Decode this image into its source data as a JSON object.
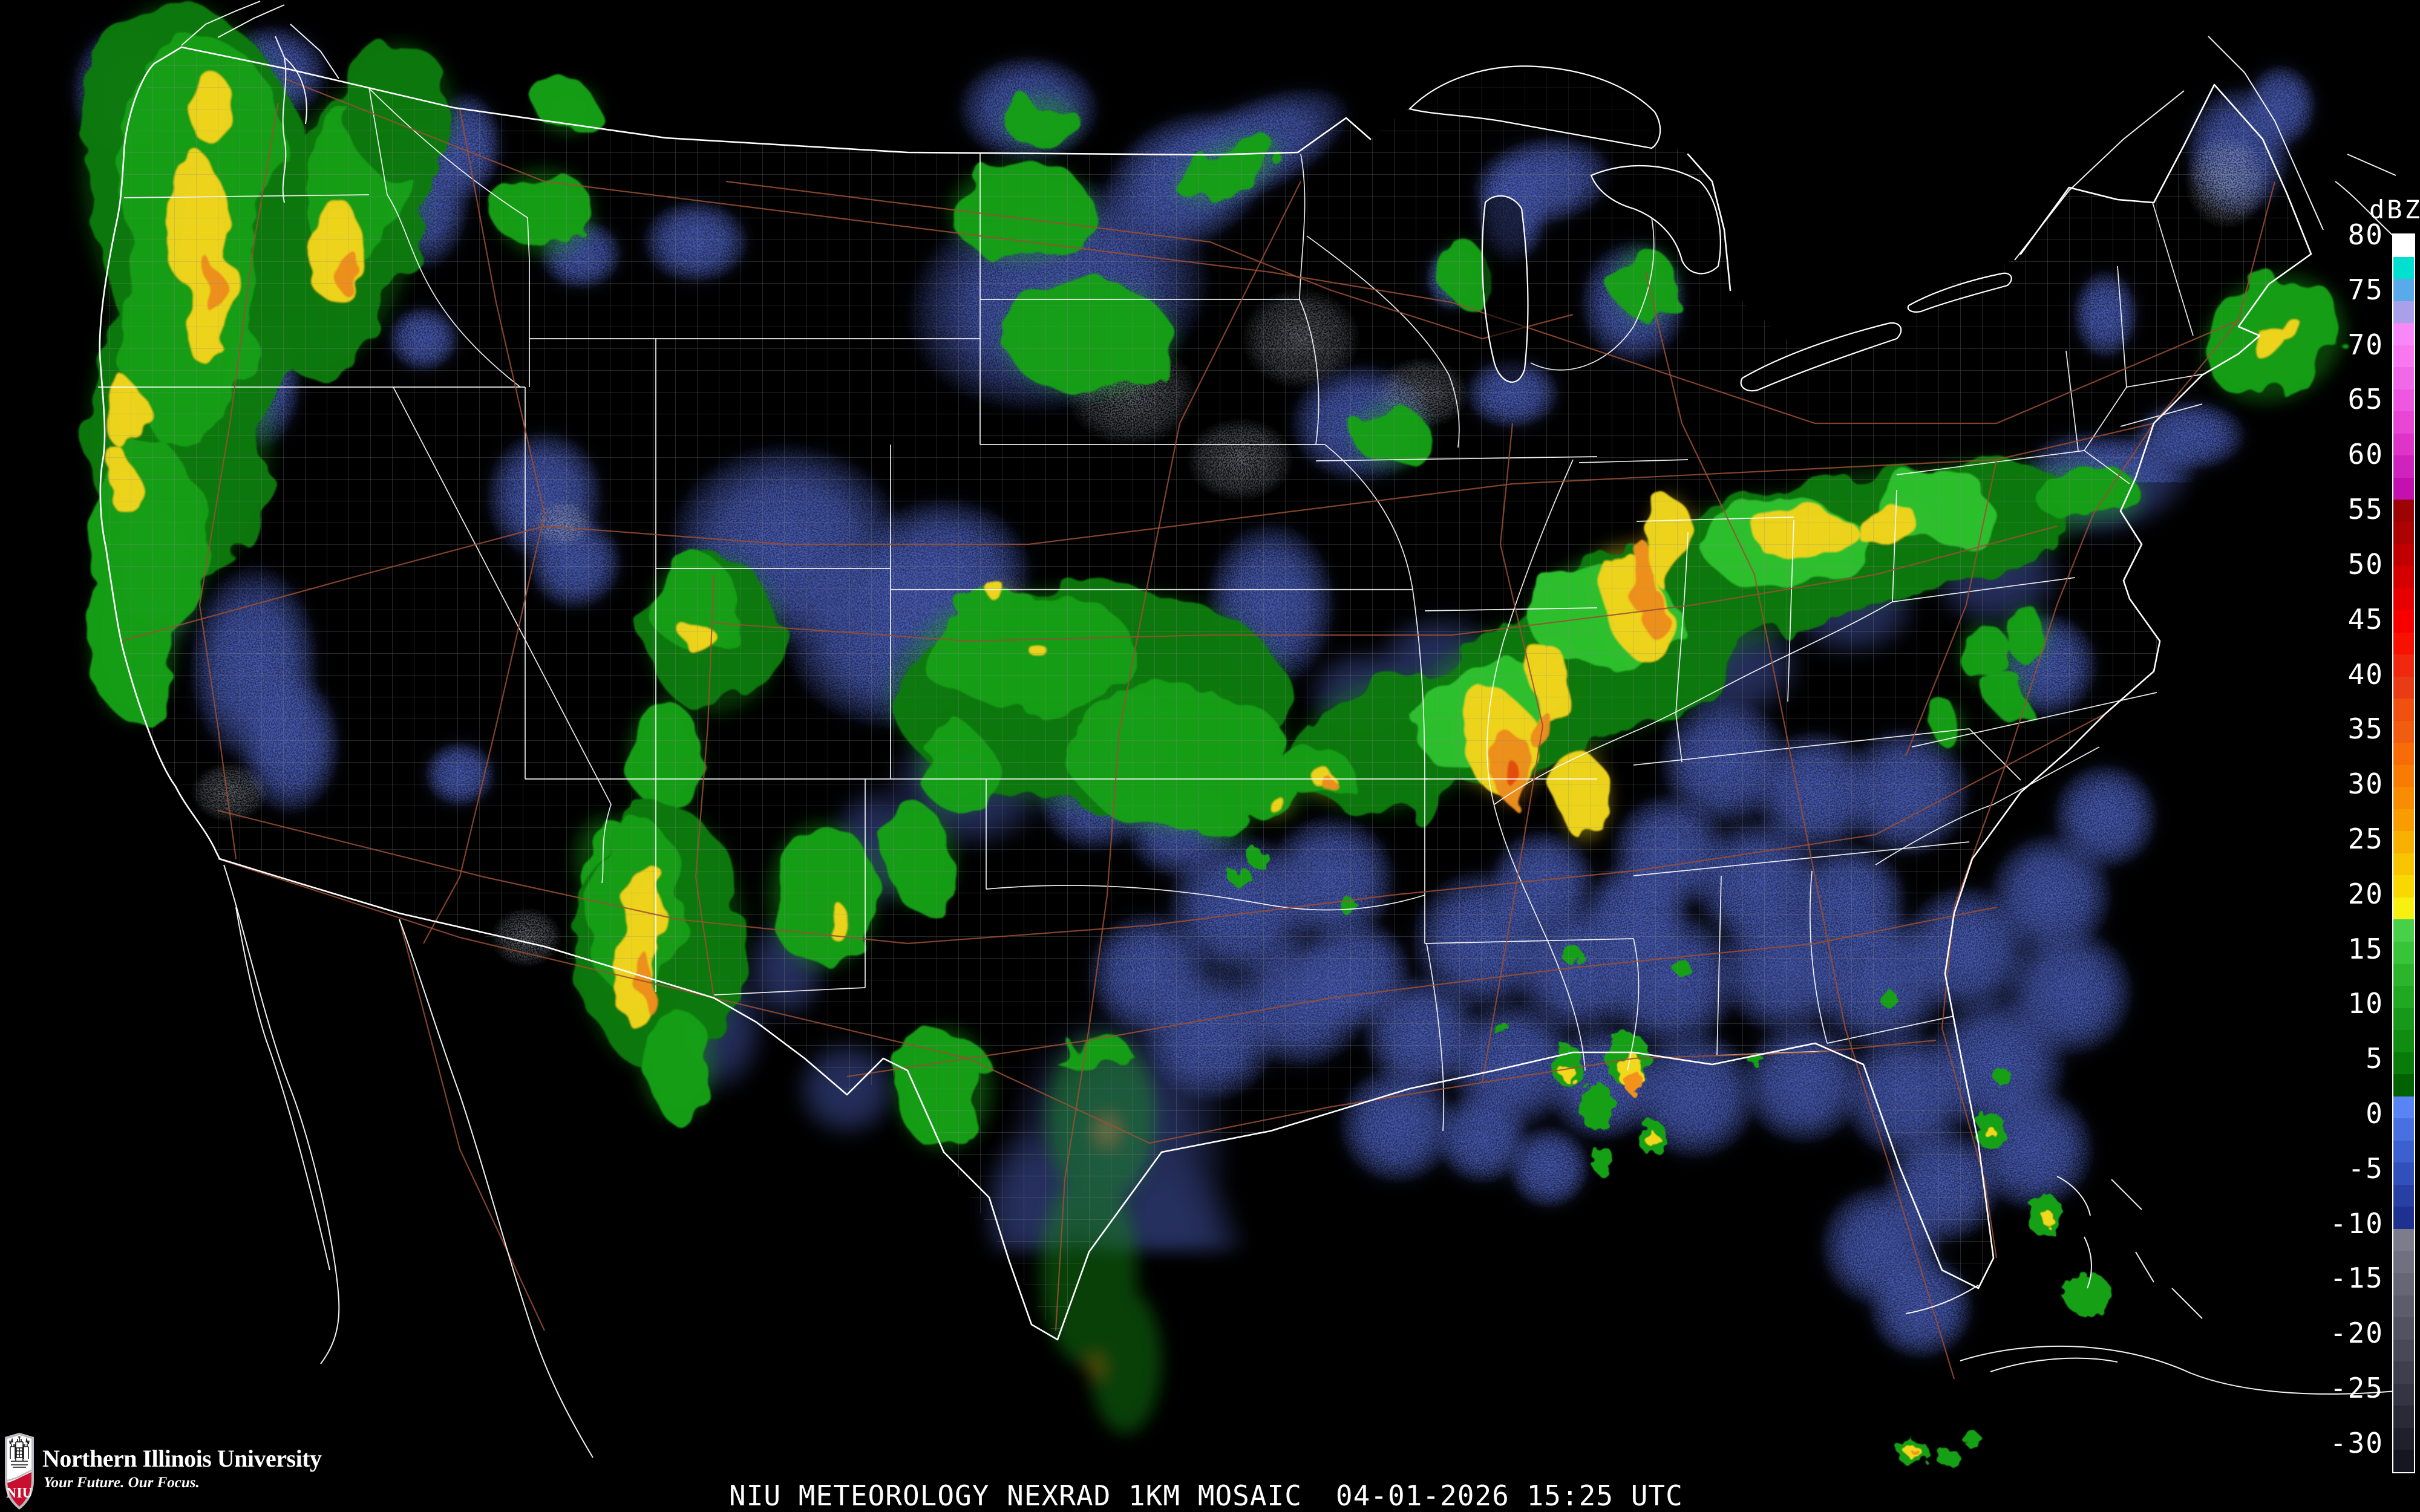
{
  "colorbar": {
    "title": "dBZ",
    "ticks": [
      "80",
      "75",
      "70",
      "65",
      "60",
      "55",
      "50",
      "45",
      "40",
      "35",
      "30",
      "25",
      "20",
      "15",
      "10",
      "5",
      "0",
      "-5",
      "-10",
      "-15",
      "-20",
      "-25",
      "-30"
    ],
    "colors": [
      "#ffffff",
      "#00e0d0",
      "#58aae8",
      "#a8a0e8",
      "#f888f8",
      "#f878f0",
      "#f06ae8",
      "#ee58e0",
      "#e846d4",
      "#e034c8",
      "#d022bc",
      "#c410b0",
      "#9c0404",
      "#ac0202",
      "#c00000",
      "#d40000",
      "#e80000",
      "#f80000",
      "#f81000",
      "#f02810",
      "#e83c14",
      "#f05010",
      "#f05c10",
      "#f86c08",
      "#f87c04",
      "#f88c00",
      "#f89c00",
      "#f8b000",
      "#f8c400",
      "#f8d800",
      "#f8f010",
      "#48d048",
      "#38c438",
      "#2cb42c",
      "#20a820",
      "#189818",
      "#108c10",
      "#087c08",
      "#016201",
      "#5884f4",
      "#4870e0",
      "#3c60d0",
      "#3250bc",
      "#2840a4",
      "#1e3090",
      "#7c7c8a",
      "#707080",
      "#666674",
      "#5c5c6a",
      "#525260",
      "#484856",
      "#3e3e4c",
      "#343442",
      "#2a2a36",
      "#20202c",
      "#161620"
    ]
  },
  "caption": {
    "product": "NIU METEOROLOGY NEXRAD 1KM MOSAIC",
    "timestamp": "04-01-2026 15:25 UTC"
  },
  "logo": {
    "org": "Northern Illinois University",
    "tagline": "Your Future. Our Focus.",
    "monogram": "NIU"
  },
  "legend_colors": {
    "background": "#000000",
    "state_border": "#ffffff",
    "county_line": "#8a8a8a",
    "highway": "#9b4f33",
    "echo_blue": "#5268cc",
    "echo_gray": "#98a0ae",
    "echo_green": "#14a014",
    "echo_dark_green": "#0a7a0a",
    "echo_bright_green": "#2ec42e",
    "echo_yellow": "#f2d81e",
    "echo_orange": "#f2921a",
    "echo_red_orange": "#e8500e",
    "niu_red": "#c8102e"
  }
}
